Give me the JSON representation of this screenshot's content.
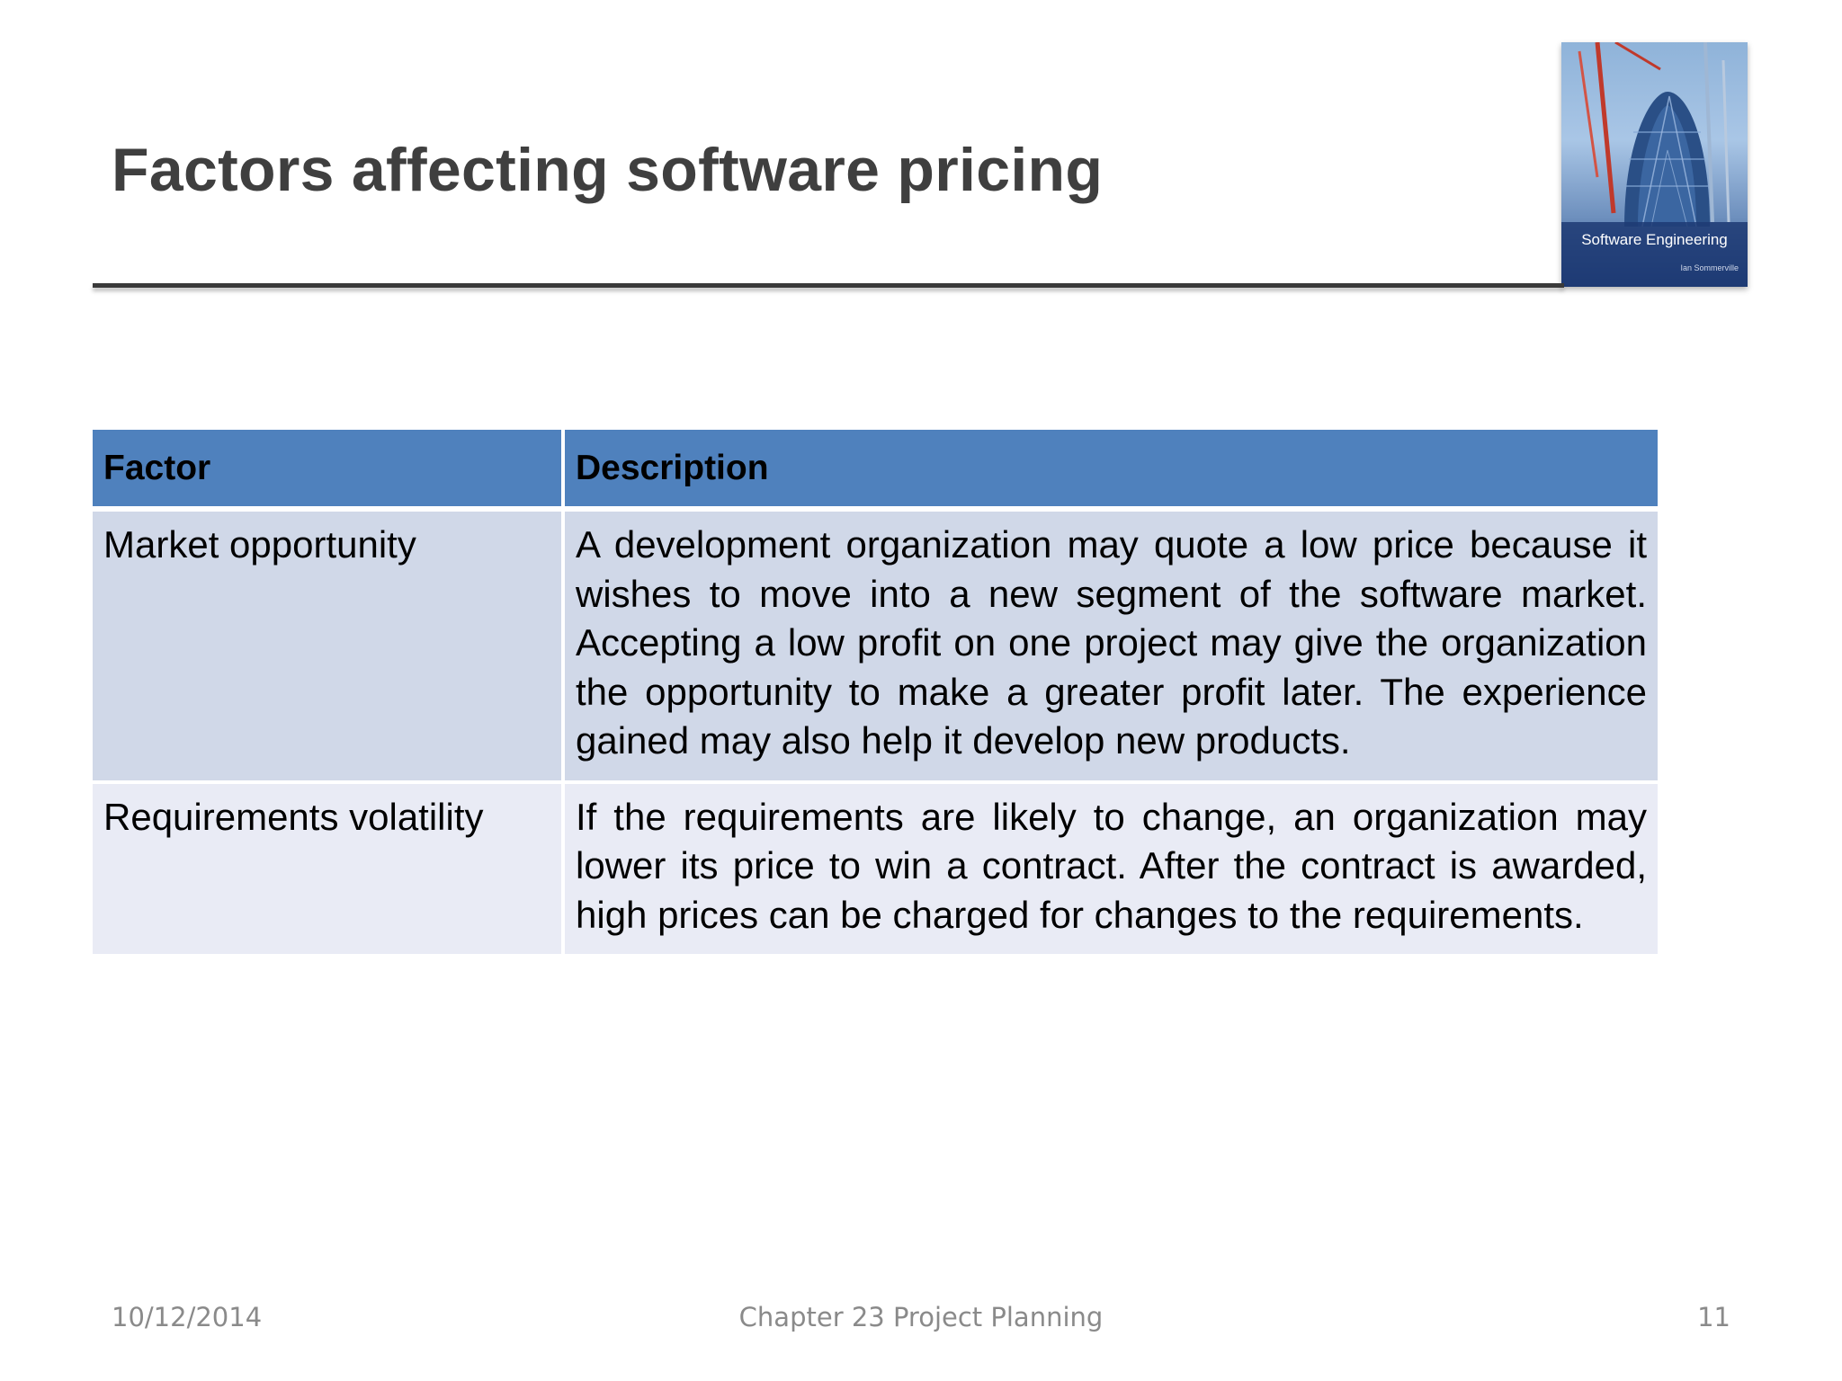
{
  "slide": {
    "title": "Factors affecting software pricing"
  },
  "book_cover": {
    "title": "Software Engineering",
    "author": "Ian Sommerville"
  },
  "table": {
    "headers": [
      "Factor",
      "Description"
    ],
    "rows": [
      {
        "factor": "Market opportunity",
        "description": "A development organization may quote a low price because it wishes to move into a new segment of the software market. Accepting a low profit on one project may give the organization the opportunity to make a greater profit later. The experience gained may also help it develop new products."
      },
      {
        "factor": "Requirements volatility",
        "description": "If the requirements are likely to change, an organization may lower its price to win a contract. After the contract is awarded, high prices can be charged for changes to the requirements."
      }
    ]
  },
  "footer": {
    "date": "10/12/2014",
    "chapter": "Chapter 23 Project Planning",
    "page_number": "11"
  },
  "colors": {
    "header_fill": "#4f81bd",
    "row_odd_fill": "#d0d8e8",
    "row_even_fill": "#e9ebf5",
    "title_color": "#3f3f3f"
  }
}
